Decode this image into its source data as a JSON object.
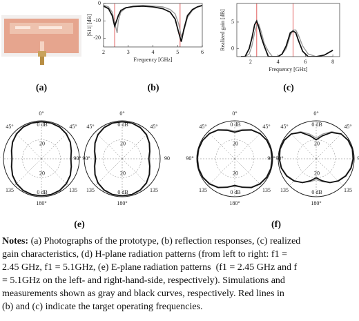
{
  "panel_labels": [
    "(a)",
    "(b)",
    "(c)",
    "(e)",
    "(f)"
  ],
  "chart_data": [
    {
      "type": "line",
      "y_label": "|S11| [dB]",
      "x_label": "Frequency [GHz]",
      "xlim": [
        2,
        6
      ],
      "xticks": [
        2,
        3,
        4,
        5,
        6
      ],
      "ylim": [
        -25,
        0
      ],
      "yticks": [
        -20,
        -10,
        0
      ],
      "ref_lines": {
        "values": [
          2.45,
          5.1
        ],
        "color": "#e05a5a"
      },
      "series": [
        {
          "color": "#9a9a9a",
          "x": [
            2,
            2.2,
            2.35,
            2.45,
            2.55,
            2.6,
            2.7,
            2.9,
            3.2,
            3.6,
            4.0,
            4.4,
            4.7,
            4.9,
            5.05,
            5.15,
            5.25,
            5.4,
            5.6,
            5.8,
            6
          ],
          "values": [
            -1,
            -2,
            -5,
            -11,
            -17,
            -10,
            -5,
            -2.5,
            -1.5,
            -1.2,
            -1.5,
            -2,
            -3.5,
            -6,
            -12,
            -19,
            -16,
            -8,
            -4,
            -2,
            -1
          ]
        },
        {
          "color": "#111111",
          "x": [
            2,
            2.2,
            2.35,
            2.45,
            2.55,
            2.6,
            2.7,
            2.9,
            3.2,
            3.6,
            4.0,
            4.4,
            4.7,
            4.9,
            5.05,
            5.15,
            5.25,
            5.4,
            5.6,
            5.8,
            6
          ],
          "values": [
            -1.5,
            -3,
            -7,
            -13,
            -9,
            -7,
            -4,
            -2.5,
            -1.8,
            -1.5,
            -2,
            -3,
            -5,
            -9,
            -17,
            -22,
            -15,
            -7,
            -3.5,
            -2,
            -1.2
          ]
        }
      ]
    },
    {
      "type": "line",
      "y_label": "Realized gain [dB]",
      "x_label": "Frequency [GHz]",
      "xlim": [
        1,
        8.5
      ],
      "xticks": [
        2,
        4,
        6,
        8
      ],
      "ylim": [
        -1.5,
        8.5
      ],
      "yticks": [
        0,
        5
      ],
      "ref_lines": {
        "values": [
          2.45,
          5.1
        ],
        "color": "#e05a5a"
      },
      "series": [
        {
          "color": "#9a9a9a",
          "x": [
            1.3,
            1.6,
            1.9,
            2.1,
            2.3,
            2.45,
            2.6,
            2.8,
            3.0,
            3.3,
            3.6,
            4.0,
            4.3,
            4.6,
            4.9,
            5.1,
            5.3,
            5.5,
            5.8,
            6.2,
            6.8,
            7.4,
            8.0
          ],
          "values": [
            -1.5,
            -1.5,
            -1,
            0.5,
            3,
            4.3,
            4.6,
            3,
            1,
            -0.5,
            -1.5,
            -1.5,
            -1,
            0,
            2.5,
            3.5,
            3.5,
            2.5,
            0.5,
            -1,
            -1.5,
            -1.5,
            -1.5
          ]
        },
        {
          "color": "#111111",
          "x": [
            1.3,
            1.6,
            1.9,
            2.1,
            2.3,
            2.45,
            2.6,
            2.8,
            3.0,
            3.3,
            3.6,
            4.0,
            4.3,
            4.6,
            4.9,
            5.1,
            5.3,
            5.5,
            5.8,
            6.2,
            6.8,
            7.4,
            8.0
          ],
          "values": [
            -1.5,
            -1.5,
            0,
            2,
            4.5,
            5.2,
            4,
            2,
            0.5,
            -1.5,
            -1.5,
            -1.5,
            -1,
            0.5,
            3,
            3.3,
            3,
            1.5,
            -0.5,
            -1.5,
            -1.5,
            -1.2,
            -0.3
          ]
        }
      ]
    },
    {
      "type": "polar",
      "rlim": [
        -40,
        0
      ],
      "rticks": [
        {
          "value": -20,
          "label": "20"
        },
        {
          "value": 0,
          "label": "0 dB"
        }
      ],
      "angle_ticks": [
        {
          "value": 0,
          "label": "0°"
        },
        {
          "value": 45,
          "label": "45°"
        },
        {
          "value": 90,
          "label": "90°"
        },
        {
          "value": 135,
          "label": "135"
        },
        {
          "value": 180,
          "label": "180°"
        },
        {
          "value": 225,
          "label": "135"
        },
        {
          "value": 270,
          "label": "90°"
        },
        {
          "value": 315,
          "label": "45°"
        }
      ],
      "angles": [
        0,
        15,
        30,
        45,
        60,
        75,
        90,
        105,
        120,
        135,
        150,
        165,
        180,
        195,
        210,
        225,
        240,
        255,
        270,
        285,
        300,
        315,
        330,
        345
      ],
      "series": [
        {
          "color": "#9a9a9a",
          "values": [
            -0.5,
            -0.5,
            -1,
            -2.5,
            -4.5,
            -7,
            -8.5,
            -7,
            -4.5,
            -2.5,
            -1,
            -0.5,
            -0.5,
            -0.5,
            -1,
            -2.5,
            -4.5,
            -7,
            -8.5,
            -7,
            -4.5,
            -2.5,
            -1,
            -0.5
          ]
        },
        {
          "color": "#111111",
          "values": [
            -1,
            -1,
            -1.5,
            -3,
            -5,
            -7.5,
            -9,
            -7.5,
            -5,
            -3,
            -1.5,
            -1,
            -1,
            -1,
            -1.5,
            -3,
            -5,
            -7.5,
            -9,
            -7.5,
            -5,
            -3,
            -1.5,
            -1
          ]
        }
      ]
    },
    {
      "type": "polar",
      "rlim": [
        -40,
        0
      ],
      "rticks": [
        {
          "value": -20,
          "label": "20"
        },
        {
          "value": 0,
          "label": "0 dB"
        }
      ],
      "angle_ticks": [
        {
          "value": 0,
          "label": "0°"
        },
        {
          "value": 45,
          "label": "45°"
        },
        {
          "value": 90,
          "label": "90"
        },
        {
          "value": 135,
          "label": "135"
        },
        {
          "value": 180,
          "label": "180°"
        },
        {
          "value": 225,
          "label": "135"
        },
        {
          "value": 270,
          "label": "90°"
        },
        {
          "value": 315,
          "label": "45°"
        }
      ],
      "angles": [
        0,
        15,
        30,
        45,
        60,
        75,
        90,
        105,
        120,
        135,
        150,
        165,
        180,
        195,
        210,
        225,
        240,
        255,
        270,
        285,
        300,
        315,
        330,
        345
      ],
      "series": [
        {
          "color": "#9a9a9a",
          "values": [
            -0.5,
            -0.5,
            -1.5,
            -3.5,
            -6.5,
            -9.5,
            -11,
            -9.5,
            -6.5,
            -3.5,
            -1.5,
            -0.5,
            -0.5,
            -0.5,
            -1.5,
            -3.5,
            -6.5,
            -9.5,
            -11,
            -9.5,
            -6.5,
            -3.5,
            -1.5,
            -0.5
          ]
        },
        {
          "color": "#111111",
          "values": [
            -1,
            -1,
            -2,
            -4,
            -7,
            -10,
            -12,
            -10,
            -7,
            -4,
            -2,
            -1,
            -1,
            -1,
            -2,
            -4,
            -7,
            -10,
            -12,
            -10,
            -7,
            -4,
            -2,
            -1
          ]
        }
      ]
    },
    {
      "type": "polar",
      "rlim": [
        -40,
        0
      ],
      "rticks": [
        {
          "value": -20,
          "label": "20"
        },
        {
          "value": 0,
          "label": "0 dB"
        }
      ],
      "angle_ticks": [
        {
          "value": 0,
          "label": "0°"
        },
        {
          "value": 45,
          "label": "45°"
        },
        {
          "value": 90,
          "label": "90°"
        },
        {
          "value": 135,
          "label": "135"
        },
        {
          "value": 180,
          "label": "180°"
        },
        {
          "value": 225,
          "label": "135"
        },
        {
          "value": 270,
          "label": "90°"
        },
        {
          "value": 315,
          "label": "45°"
        }
      ],
      "angles": [
        0,
        15,
        30,
        45,
        60,
        75,
        90,
        105,
        120,
        135,
        150,
        165,
        180,
        195,
        210,
        225,
        240,
        255,
        270,
        285,
        300,
        315,
        330,
        345
      ],
      "series": [
        {
          "color": "#9a9a9a",
          "values": [
            -11,
            -8,
            -4.5,
            -2,
            -1,
            -1,
            -1,
            -1,
            -1.5,
            -3,
            -5.5,
            -9,
            -11,
            -9,
            -5.5,
            -3,
            -1.5,
            -1,
            -1,
            -1,
            -1,
            -2,
            -4.5,
            -8
          ]
        },
        {
          "color": "#111111",
          "values": [
            -12,
            -9,
            -5,
            -2.5,
            -1,
            -0.5,
            -0.5,
            -0.5,
            -1,
            -2.5,
            -5,
            -9,
            -12,
            -9,
            -5,
            -2.5,
            -1,
            -0.5,
            -0.5,
            -0.5,
            -1,
            -2.5,
            -5,
            -9
          ]
        }
      ]
    },
    {
      "type": "polar",
      "rlim": [
        -40,
        0
      ],
      "rticks": [
        {
          "value": -20,
          "label": "20"
        },
        {
          "value": 0,
          "label": "0 dB"
        }
      ],
      "angle_ticks": [
        {
          "value": 0,
          "label": "0°"
        },
        {
          "value": 45,
          "label": "45°"
        },
        {
          "value": 90,
          "label": "90°"
        },
        {
          "value": 135,
          "label": "135"
        },
        {
          "value": 180,
          "label": "180°"
        },
        {
          "value": 225,
          "label": "135"
        },
        {
          "value": 270,
          "label": "90°"
        },
        {
          "value": 315,
          "label": "45°"
        }
      ],
      "angles": [
        0,
        15,
        30,
        45,
        60,
        75,
        90,
        105,
        120,
        135,
        150,
        165,
        180,
        195,
        210,
        225,
        240,
        255,
        270,
        285,
        300,
        315,
        330,
        345
      ],
      "series": [
        {
          "color": "#9a9a9a",
          "values": [
            -18,
            -13,
            -7,
            -3,
            -1.5,
            -1,
            -1.5,
            -2.5,
            -4.5,
            -7.5,
            -11,
            -15,
            -18,
            -15,
            -11,
            -7.5,
            -4.5,
            -2.5,
            -1.5,
            -1,
            -1.5,
            -3,
            -7,
            -13
          ]
        },
        {
          "color": "#111111",
          "values": [
            -20,
            -15,
            -8,
            -3,
            -1,
            -0.5,
            -1,
            -2,
            -4,
            -7,
            -11,
            -16,
            -20,
            -16,
            -11,
            -7,
            -4,
            -2,
            -1,
            -0.5,
            -1,
            -3,
            -8,
            -15
          ]
        }
      ]
    }
  ],
  "caption": {
    "lead": "Notes:",
    "lines": [
      "(a) Photographs of the prototype, (b) reflection responses, (c) realized",
      "gain characteristics, (d) H-plane radiation patterns (from left to right: f1 =",
      "2.45 GHz, f1 = 5.1GHz, (e) E-plane radiation patterns  (f1 = 2.45 GHz and f",
      "= 5.1GHz on the left- and right-hand-side, respectively). Simulations and",
      "measurements shown as gray and black curves, respectively. Red lines in",
      "(b) and (c) indicate the target operating frequencies."
    ]
  }
}
